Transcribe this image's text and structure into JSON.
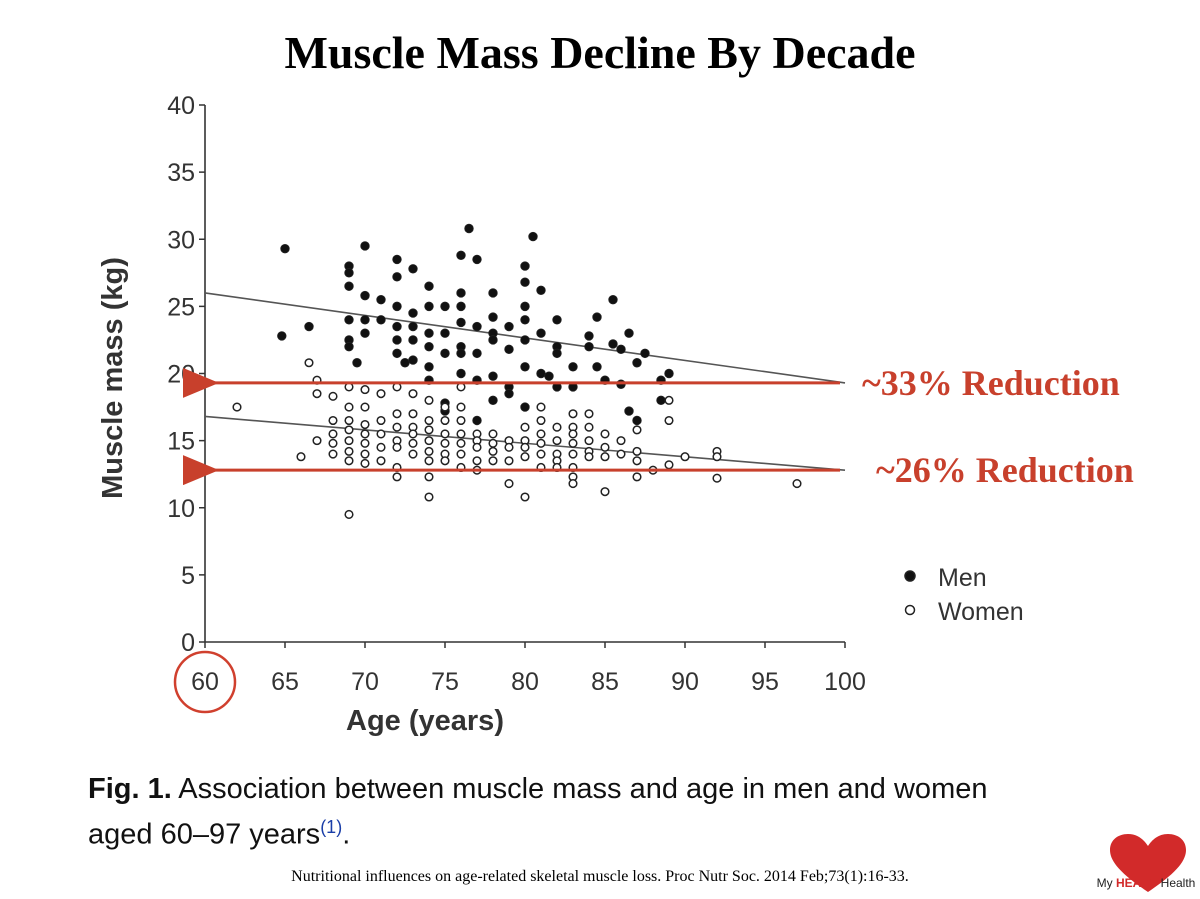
{
  "slide": {
    "title": "Muscle Mass Decline By Decade"
  },
  "chart_data": {
    "type": "scatter",
    "title": "",
    "xlabel": "Age (years)",
    "ylabel": "Muscle mass (kg)",
    "xlim": [
      60,
      100
    ],
    "ylim": [
      0,
      40
    ],
    "xticks": [
      60,
      65,
      70,
      75,
      80,
      85,
      90,
      95,
      100
    ],
    "yticks": [
      0,
      5,
      10,
      15,
      20,
      25,
      30,
      35,
      40
    ],
    "legend": {
      "position": "right",
      "entries": [
        {
          "name": "Men",
          "marker": "filled-circle"
        },
        {
          "name": "Women",
          "marker": "open-circle"
        }
      ]
    },
    "series": [
      {
        "name": "Men",
        "marker": "filled",
        "points": [
          [
            65,
            29.3
          ],
          [
            66.5,
            23.5
          ],
          [
            64.8,
            22.8
          ],
          [
            69,
            28
          ],
          [
            69,
            27.5
          ],
          [
            69,
            26.5
          ],
          [
            69,
            24
          ],
          [
            69,
            22.5
          ],
          [
            69,
            22
          ],
          [
            69.5,
            20.8
          ],
          [
            70,
            29.5
          ],
          [
            70,
            25.8
          ],
          [
            70,
            24
          ],
          [
            70,
            23
          ],
          [
            71,
            25.5
          ],
          [
            71,
            24
          ],
          [
            72,
            28.5
          ],
          [
            72,
            27.2
          ],
          [
            72,
            25
          ],
          [
            72,
            23.5
          ],
          [
            72,
            22.5
          ],
          [
            72,
            21.5
          ],
          [
            72.5,
            20.8
          ],
          [
            73,
            27.8
          ],
          [
            73,
            24.5
          ],
          [
            73,
            23.5
          ],
          [
            73,
            22.5
          ],
          [
            73,
            21
          ],
          [
            74,
            26.5
          ],
          [
            74,
            25
          ],
          [
            74,
            23
          ],
          [
            74,
            22
          ],
          [
            74,
            20.5
          ],
          [
            74,
            19.5
          ],
          [
            75,
            25
          ],
          [
            75,
            23
          ],
          [
            75,
            21.5
          ],
          [
            75,
            17.8
          ],
          [
            75,
            17.2
          ],
          [
            76,
            28.8
          ],
          [
            76,
            26
          ],
          [
            76,
            25
          ],
          [
            76,
            23.8
          ],
          [
            76,
            22
          ],
          [
            76,
            21.5
          ],
          [
            76,
            20
          ],
          [
            76.5,
            30.8
          ],
          [
            77,
            28.5
          ],
          [
            77,
            23.5
          ],
          [
            77,
            21.5
          ],
          [
            77,
            19.5
          ],
          [
            77,
            16.5
          ],
          [
            78,
            26
          ],
          [
            78,
            24.2
          ],
          [
            78,
            23
          ],
          [
            78,
            22.5
          ],
          [
            78,
            19.8
          ],
          [
            78,
            18
          ],
          [
            79,
            23.5
          ],
          [
            79,
            21.8
          ],
          [
            79,
            19
          ],
          [
            79,
            18.5
          ],
          [
            80,
            28
          ],
          [
            80,
            26.8
          ],
          [
            80,
            25
          ],
          [
            80,
            24
          ],
          [
            80,
            22.5
          ],
          [
            80,
            20.5
          ],
          [
            80,
            17.5
          ],
          [
            80.5,
            30.2
          ],
          [
            81,
            26.2
          ],
          [
            81,
            23
          ],
          [
            81,
            20
          ],
          [
            81.5,
            19.8
          ],
          [
            82,
            24
          ],
          [
            82,
            22
          ],
          [
            82,
            21.5
          ],
          [
            82,
            19
          ],
          [
            83,
            20.5
          ],
          [
            83,
            19
          ],
          [
            84,
            22.8
          ],
          [
            84,
            22
          ],
          [
            84.5,
            24.2
          ],
          [
            84.5,
            20.5
          ],
          [
            85,
            19.5
          ],
          [
            85.5,
            25.5
          ],
          [
            85.5,
            22.2
          ],
          [
            86,
            21.8
          ],
          [
            86,
            19.2
          ],
          [
            86.5,
            23
          ],
          [
            86.5,
            17.2
          ],
          [
            87,
            16.5
          ],
          [
            87.5,
            21.5
          ],
          [
            88.5,
            18
          ],
          [
            88.5,
            19.5
          ],
          [
            89,
            20
          ],
          [
            87,
            20.8
          ]
        ]
      },
      {
        "name": "Women",
        "marker": "open",
        "points": [
          [
            62,
            17.5
          ],
          [
            66,
            13.8
          ],
          [
            66.5,
            20.8
          ],
          [
            67,
            19.5
          ],
          [
            67,
            18.5
          ],
          [
            67,
            15
          ],
          [
            68,
            18.3
          ],
          [
            68,
            16.5
          ],
          [
            68,
            15.5
          ],
          [
            68,
            14.8
          ],
          [
            68,
            14
          ],
          [
            69,
            19
          ],
          [
            69,
            17.5
          ],
          [
            69,
            16.5
          ],
          [
            69,
            15.8
          ],
          [
            69,
            15
          ],
          [
            69,
            14.2
          ],
          [
            69,
            13.5
          ],
          [
            69,
            9.5
          ],
          [
            70,
            18.8
          ],
          [
            70,
            17.5
          ],
          [
            70,
            16.2
          ],
          [
            70,
            15.5
          ],
          [
            70,
            14.8
          ],
          [
            70,
            14
          ],
          [
            70,
            13.3
          ],
          [
            71,
            18.5
          ],
          [
            71,
            16.5
          ],
          [
            71,
            15.5
          ],
          [
            71,
            14.5
          ],
          [
            71,
            13.5
          ],
          [
            72,
            19
          ],
          [
            72,
            17
          ],
          [
            72,
            16
          ],
          [
            72,
            15
          ],
          [
            72,
            14.5
          ],
          [
            72,
            13
          ],
          [
            72,
            12.3
          ],
          [
            73,
            18.5
          ],
          [
            73,
            17
          ],
          [
            73,
            16
          ],
          [
            73,
            15.5
          ],
          [
            73,
            14.8
          ],
          [
            73,
            14
          ],
          [
            74,
            18
          ],
          [
            74,
            16.5
          ],
          [
            74,
            15.8
          ],
          [
            74,
            15
          ],
          [
            74,
            14.2
          ],
          [
            74,
            13.5
          ],
          [
            74,
            12.3
          ],
          [
            74,
            10.8
          ],
          [
            75,
            17.5
          ],
          [
            75,
            16.5
          ],
          [
            75,
            15.5
          ],
          [
            75,
            14.8
          ],
          [
            75,
            14
          ],
          [
            75,
            13.5
          ],
          [
            76,
            19
          ],
          [
            76,
            17.5
          ],
          [
            76,
            16.5
          ],
          [
            76,
            15.5
          ],
          [
            76,
            14.8
          ],
          [
            76,
            14
          ],
          [
            76,
            13
          ],
          [
            77,
            15.5
          ],
          [
            77,
            15
          ],
          [
            77,
            14.5
          ],
          [
            77,
            13.5
          ],
          [
            77,
            12.8
          ],
          [
            78,
            15.5
          ],
          [
            78,
            14.8
          ],
          [
            78,
            14.2
          ],
          [
            78,
            13.5
          ],
          [
            79,
            15
          ],
          [
            79,
            14.5
          ],
          [
            79,
            13.5
          ],
          [
            79,
            11.8
          ],
          [
            80,
            16
          ],
          [
            80,
            15
          ],
          [
            80,
            14.5
          ],
          [
            80,
            13.8
          ],
          [
            80,
            10.8
          ],
          [
            81,
            16.5
          ],
          [
            81,
            15.5
          ],
          [
            81,
            14.8
          ],
          [
            81,
            14
          ],
          [
            81,
            13
          ],
          [
            81,
            17.5
          ],
          [
            82,
            16
          ],
          [
            82,
            15
          ],
          [
            82,
            14
          ],
          [
            82,
            13.5
          ],
          [
            82,
            13
          ],
          [
            83,
            17
          ],
          [
            83,
            16
          ],
          [
            83,
            15.5
          ],
          [
            83,
            14.8
          ],
          [
            83,
            14
          ],
          [
            83,
            13
          ],
          [
            83,
            12.3
          ],
          [
            83,
            11.8
          ],
          [
            84,
            17
          ],
          [
            84,
            16
          ],
          [
            84,
            15
          ],
          [
            84,
            14.2
          ],
          [
            84,
            13.8
          ],
          [
            85,
            15.5
          ],
          [
            85,
            14.5
          ],
          [
            85,
            13.8
          ],
          [
            85,
            11.2
          ],
          [
            86,
            15
          ],
          [
            86,
            14
          ],
          [
            87,
            15.8
          ],
          [
            87,
            14.2
          ],
          [
            87,
            13.5
          ],
          [
            87,
            12.3
          ],
          [
            88,
            12.8
          ],
          [
            89,
            18
          ],
          [
            89,
            16.5
          ],
          [
            89,
            13.2
          ],
          [
            90,
            13.8
          ],
          [
            92,
            14.2
          ],
          [
            92,
            13.8
          ],
          [
            92,
            12.2
          ],
          [
            97,
            11.8
          ]
        ]
      }
    ],
    "trendlines": [
      {
        "name": "Men",
        "from": [
          60,
          26
        ],
        "to": [
          100,
          19.3
        ]
      },
      {
        "name": "Women",
        "from": [
          60,
          16.8
        ],
        "to": [
          100,
          12.8
        ]
      }
    ],
    "annotations": [
      {
        "text": "~33% Reduction",
        "y": 19.3,
        "color": "#c8402c"
      },
      {
        "text": "~26% Reduction",
        "y": 12.8,
        "color": "#c8402c"
      }
    ],
    "highlight_tick": 60
  },
  "caption": {
    "label": "Fig. 1.",
    "text": " Association between muscle mass and age in men and women aged 60–97 years",
    "ref": "(1)",
    "end": "."
  },
  "citation": "Nutritional influences on age-related skeletal muscle loss. Proc Nutr Soc. 2014 Feb;73(1):16-33.",
  "logo": {
    "prefix": "My ",
    "brand": "HEART",
    "suffix": " Health",
    "color": "#d22a2a"
  }
}
